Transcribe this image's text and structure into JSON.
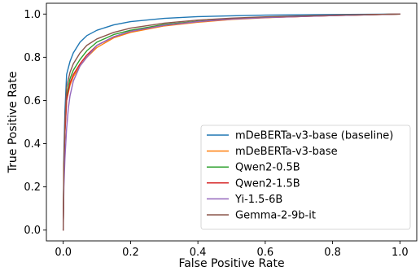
{
  "chart_data": {
    "type": "line",
    "title": "",
    "xlabel": "False Positive Rate",
    "ylabel": "True Positive Rate",
    "xlim": [
      -0.05,
      1.05
    ],
    "ylim": [
      -0.05,
      1.05
    ],
    "x_ticks": [
      "0.0",
      "0.2",
      "0.4",
      "0.6",
      "0.8",
      "1.0"
    ],
    "y_ticks": [
      "0.0",
      "0.2",
      "0.4",
      "0.6",
      "0.8",
      "1.0"
    ],
    "grid": false,
    "legend_position": "lower right",
    "series": [
      {
        "name": "mDeBERTa-v3-base (baseline)",
        "color": "#1f77b4",
        "points": [
          [
            0,
            0
          ],
          [
            0.002,
            0.35
          ],
          [
            0.005,
            0.55
          ],
          [
            0.01,
            0.72
          ],
          [
            0.02,
            0.78
          ],
          [
            0.03,
            0.82
          ],
          [
            0.05,
            0.87
          ],
          [
            0.07,
            0.9
          ],
          [
            0.1,
            0.925
          ],
          [
            0.15,
            0.95
          ],
          [
            0.2,
            0.965
          ],
          [
            0.3,
            0.98
          ],
          [
            0.4,
            0.988
          ],
          [
            0.5,
            0.992
          ],
          [
            0.6,
            0.995
          ],
          [
            0.8,
            0.998
          ],
          [
            1.0,
            1.0
          ]
        ]
      },
      {
        "name": "mDeBERTa-v3-base",
        "color": "#ff7f0e",
        "points": [
          [
            0,
            0
          ],
          [
            0.002,
            0.3
          ],
          [
            0.005,
            0.45
          ],
          [
            0.01,
            0.6
          ],
          [
            0.02,
            0.67
          ],
          [
            0.03,
            0.71
          ],
          [
            0.05,
            0.76
          ],
          [
            0.07,
            0.8
          ],
          [
            0.1,
            0.845
          ],
          [
            0.15,
            0.89
          ],
          [
            0.2,
            0.915
          ],
          [
            0.3,
            0.945
          ],
          [
            0.4,
            0.962
          ],
          [
            0.5,
            0.975
          ],
          [
            0.6,
            0.983
          ],
          [
            0.8,
            0.993
          ],
          [
            1.0,
            1.0
          ]
        ]
      },
      {
        "name": "Qwen2-0.5B",
        "color": "#2ca02c",
        "points": [
          [
            0,
            0
          ],
          [
            0.002,
            0.3
          ],
          [
            0.005,
            0.46
          ],
          [
            0.01,
            0.62
          ],
          [
            0.02,
            0.7
          ],
          [
            0.03,
            0.74
          ],
          [
            0.05,
            0.79
          ],
          [
            0.07,
            0.83
          ],
          [
            0.1,
            0.87
          ],
          [
            0.15,
            0.905
          ],
          [
            0.2,
            0.925
          ],
          [
            0.3,
            0.952
          ],
          [
            0.4,
            0.967
          ],
          [
            0.5,
            0.978
          ],
          [
            0.6,
            0.985
          ],
          [
            0.8,
            0.994
          ],
          [
            1.0,
            1.0
          ]
        ]
      },
      {
        "name": "Qwen2-1.5B",
        "color": "#d62728",
        "points": [
          [
            0,
            0
          ],
          [
            0.002,
            0.3
          ],
          [
            0.005,
            0.45
          ],
          [
            0.01,
            0.6
          ],
          [
            0.02,
            0.68
          ],
          [
            0.03,
            0.72
          ],
          [
            0.05,
            0.77
          ],
          [
            0.07,
            0.81
          ],
          [
            0.1,
            0.855
          ],
          [
            0.15,
            0.895
          ],
          [
            0.2,
            0.92
          ],
          [
            0.3,
            0.948
          ],
          [
            0.4,
            0.965
          ],
          [
            0.5,
            0.977
          ],
          [
            0.6,
            0.984
          ],
          [
            0.8,
            0.993
          ],
          [
            1.0,
            1.0
          ]
        ]
      },
      {
        "name": "Yi-1.5-6B",
        "color": "#9467bd",
        "points": [
          [
            0,
            0
          ],
          [
            0.002,
            0.2
          ],
          [
            0.005,
            0.33
          ],
          [
            0.01,
            0.47
          ],
          [
            0.015,
            0.56
          ],
          [
            0.02,
            0.62
          ],
          [
            0.03,
            0.69
          ],
          [
            0.05,
            0.76
          ],
          [
            0.07,
            0.8
          ],
          [
            0.1,
            0.855
          ],
          [
            0.15,
            0.895
          ],
          [
            0.2,
            0.92
          ],
          [
            0.3,
            0.948
          ],
          [
            0.4,
            0.965
          ],
          [
            0.5,
            0.977
          ],
          [
            0.6,
            0.984
          ],
          [
            0.8,
            0.993
          ],
          [
            1.0,
            1.0
          ]
        ]
      },
      {
        "name": "Gemma-2-9b-it",
        "color": "#8c564b",
        "points": [
          [
            0,
            0
          ],
          [
            0.002,
            0.32
          ],
          [
            0.005,
            0.5
          ],
          [
            0.01,
            0.66
          ],
          [
            0.02,
            0.73
          ],
          [
            0.03,
            0.77
          ],
          [
            0.05,
            0.82
          ],
          [
            0.07,
            0.855
          ],
          [
            0.1,
            0.885
          ],
          [
            0.15,
            0.915
          ],
          [
            0.2,
            0.935
          ],
          [
            0.3,
            0.958
          ],
          [
            0.4,
            0.972
          ],
          [
            0.5,
            0.981
          ],
          [
            0.6,
            0.987
          ],
          [
            0.8,
            0.995
          ],
          [
            1.0,
            1.0
          ]
        ]
      }
    ]
  }
}
